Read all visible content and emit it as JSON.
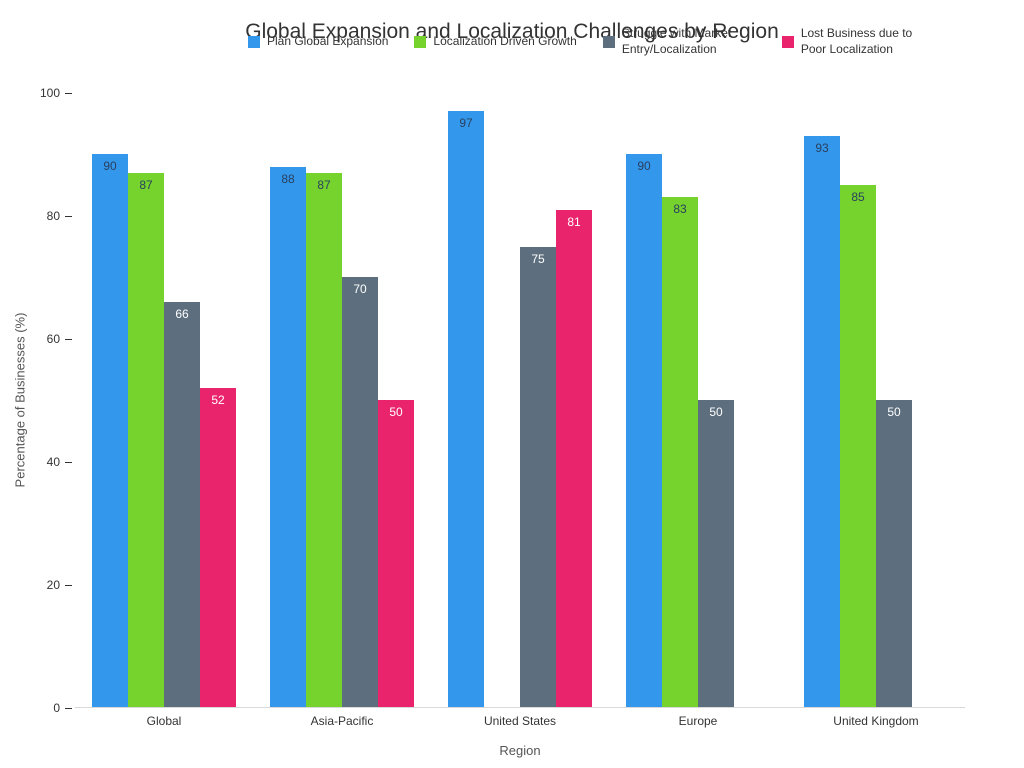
{
  "chart_data": {
    "type": "bar",
    "title": "Global Expansion and Localization Challenges by Region",
    "xlabel": "Region",
    "ylabel": "Percentage of Businesses (%)",
    "ylim": [
      0,
      100
    ],
    "yticks": [
      0,
      20,
      40,
      60,
      80,
      100
    ],
    "grid": false,
    "legend_position": "top",
    "categories": [
      "Global",
      "Asia-Pacific",
      "United States",
      "Europe",
      "United Kingdom"
    ],
    "series": [
      {
        "name": "Plan Global Expansion",
        "color": "#3398EC",
        "label_color": "#2a3f5f",
        "values": [
          90,
          88,
          97,
          90,
          93
        ]
      },
      {
        "name": "Localization Driven Growth",
        "color": "#76D32E",
        "label_color": "#2a3f5f",
        "values": [
          87,
          87,
          null,
          83,
          85
        ]
      },
      {
        "name": "Struggle with Market Entry/Localization",
        "color": "#5D6E7E",
        "label_color": "#ffffff",
        "values": [
          66,
          70,
          75,
          50,
          50
        ]
      },
      {
        "name": "Lost Business due to Poor Localization",
        "color": "#E9246D",
        "label_color": "#ffffff",
        "values": [
          52,
          50,
          81,
          null,
          null
        ]
      }
    ]
  }
}
